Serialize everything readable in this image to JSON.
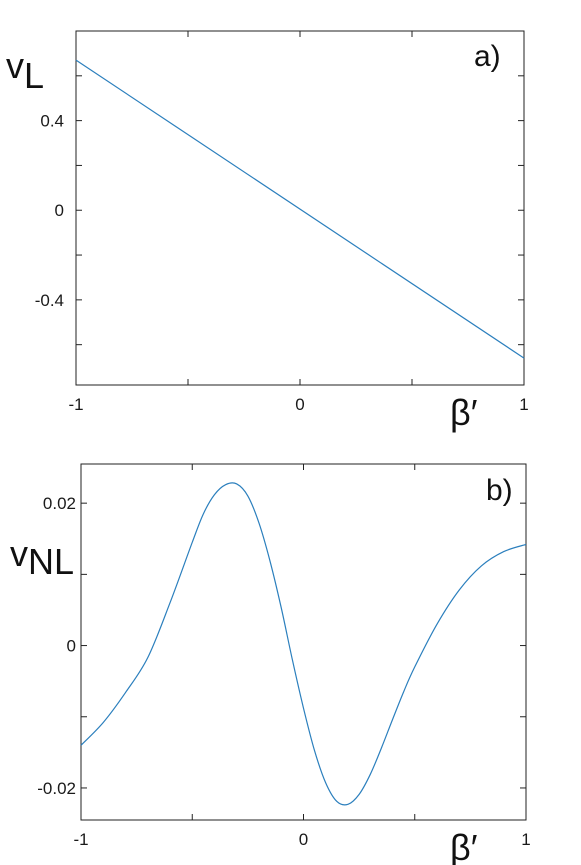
{
  "chart_data": [
    {
      "type": "line",
      "panel_label": "a)",
      "ylabel_main": "v",
      "ylabel_sub": "L",
      "xlabel": "β′",
      "xlim": [
        -1,
        1
      ],
      "ylim": [
        -0.78,
        0.8
      ],
      "xticks": [
        -1,
        0,
        1
      ],
      "xtick_labels": [
        "-1",
        "0",
        "1"
      ],
      "yticks": [
        0.4,
        0,
        -0.4
      ],
      "ytick_labels": [
        "0.4",
        "0",
        "-0.4"
      ],
      "series": [
        {
          "color": "#2b7fbd",
          "x": [
            -1,
            1
          ],
          "y": [
            0.67,
            -0.66
          ]
        }
      ],
      "grid": false
    },
    {
      "type": "line",
      "panel_label": "b)",
      "ylabel_main": "v",
      "ylabel_sub": "NL",
      "xlabel": "β′",
      "xlim": [
        -1,
        1
      ],
      "ylim": [
        -0.0245,
        0.0255
      ],
      "xticks": [
        -1,
        0,
        1
      ],
      "xtick_labels": [
        "-1",
        "0",
        "1"
      ],
      "yticks": [
        0.02,
        0,
        -0.02
      ],
      "ytick_labels": [
        "0.02",
        "0",
        "-0.02"
      ],
      "series": [
        {
          "color": "#2b7fbd",
          "x": [
            -1,
            -0.9,
            -0.8,
            -0.7,
            -0.6,
            -0.5,
            -0.45,
            -0.4,
            -0.35,
            -0.3,
            -0.25,
            -0.2,
            -0.15,
            -0.1,
            -0.05,
            0,
            0.05,
            0.1,
            0.15,
            0.2,
            0.25,
            0.3,
            0.35,
            0.4,
            0.45,
            0.5,
            0.6,
            0.7,
            0.8,
            0.9,
            1
          ],
          "y": [
            -0.014,
            -0.0108,
            -0.0066,
            -0.0017,
            0.006,
            0.0145,
            0.0185,
            0.0212,
            0.0226,
            0.0227,
            0.021,
            0.0172,
            0.0118,
            0.0053,
            -0.002,
            -0.0088,
            -0.0148,
            -0.0193,
            -0.0219,
            -0.0223,
            -0.0209,
            -0.0181,
            -0.0144,
            -0.0104,
            -0.0065,
            -0.003,
            0.003,
            0.0078,
            0.0112,
            0.0132,
            0.0142
          ]
        }
      ],
      "grid": false
    }
  ]
}
